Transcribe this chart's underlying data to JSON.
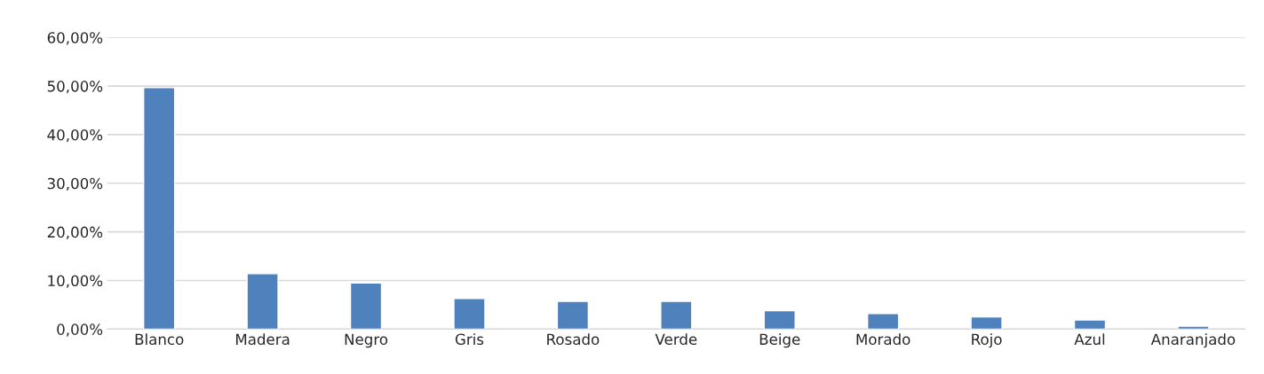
{
  "chart_data": {
    "type": "bar",
    "categories": [
      "Blanco",
      "Madera",
      "Negro",
      "Gris",
      "Rosado",
      "Verde",
      "Beige",
      "Morado",
      "Rojo",
      "Azul",
      "Anaranjado"
    ],
    "values": [
      49.7,
      11.4,
      9.5,
      6.3,
      5.7,
      5.7,
      3.8,
      3.2,
      2.5,
      1.9,
      0.6
    ],
    "color": "#4f81bd",
    "ylim": [
      0,
      60
    ],
    "yticks": [
      {
        "value": 0,
        "label": "0,00%"
      },
      {
        "value": 10,
        "label": "10,00%"
      },
      {
        "value": 20,
        "label": "20,00%"
      },
      {
        "value": 30,
        "label": "30,00%"
      },
      {
        "value": 40,
        "label": "40,00%"
      },
      {
        "value": 50,
        "label": "50,00%"
      },
      {
        "value": 60,
        "label": "60,00%"
      }
    ],
    "grid": "y"
  }
}
